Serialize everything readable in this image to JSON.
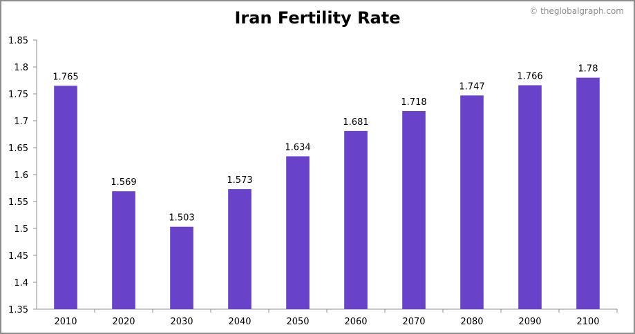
{
  "chart_data": {
    "type": "bar",
    "title": "Iran Fertility Rate",
    "credit": "© theglobalgraph.com",
    "xlabel": "",
    "ylabel": "",
    "categories": [
      "2010",
      "2020",
      "2030",
      "2040",
      "2050",
      "2060",
      "2070",
      "2080",
      "2090",
      "2100"
    ],
    "values": [
      1.765,
      1.569,
      1.503,
      1.573,
      1.634,
      1.681,
      1.718,
      1.747,
      1.766,
      1.78
    ],
    "data_labels": [
      "1.765",
      "1.569",
      "1.503",
      "1.573",
      "1.634",
      "1.681",
      "1.718",
      "1.747",
      "1.766",
      "1.78"
    ],
    "ylim": [
      1.35,
      1.85
    ],
    "yticks": [
      1.35,
      1.4,
      1.45,
      1.5,
      1.55,
      1.6,
      1.65,
      1.7,
      1.75,
      1.8,
      1.85
    ],
    "ytick_labels": [
      "1.35",
      "1.4",
      "1.45",
      "1.5",
      "1.55",
      "1.6",
      "1.65",
      "1.7",
      "1.75",
      "1.8",
      "1.85"
    ],
    "grid": false,
    "legend": "none",
    "bar_color": "#6843c9",
    "axis_color": "#8c8c8c"
  }
}
